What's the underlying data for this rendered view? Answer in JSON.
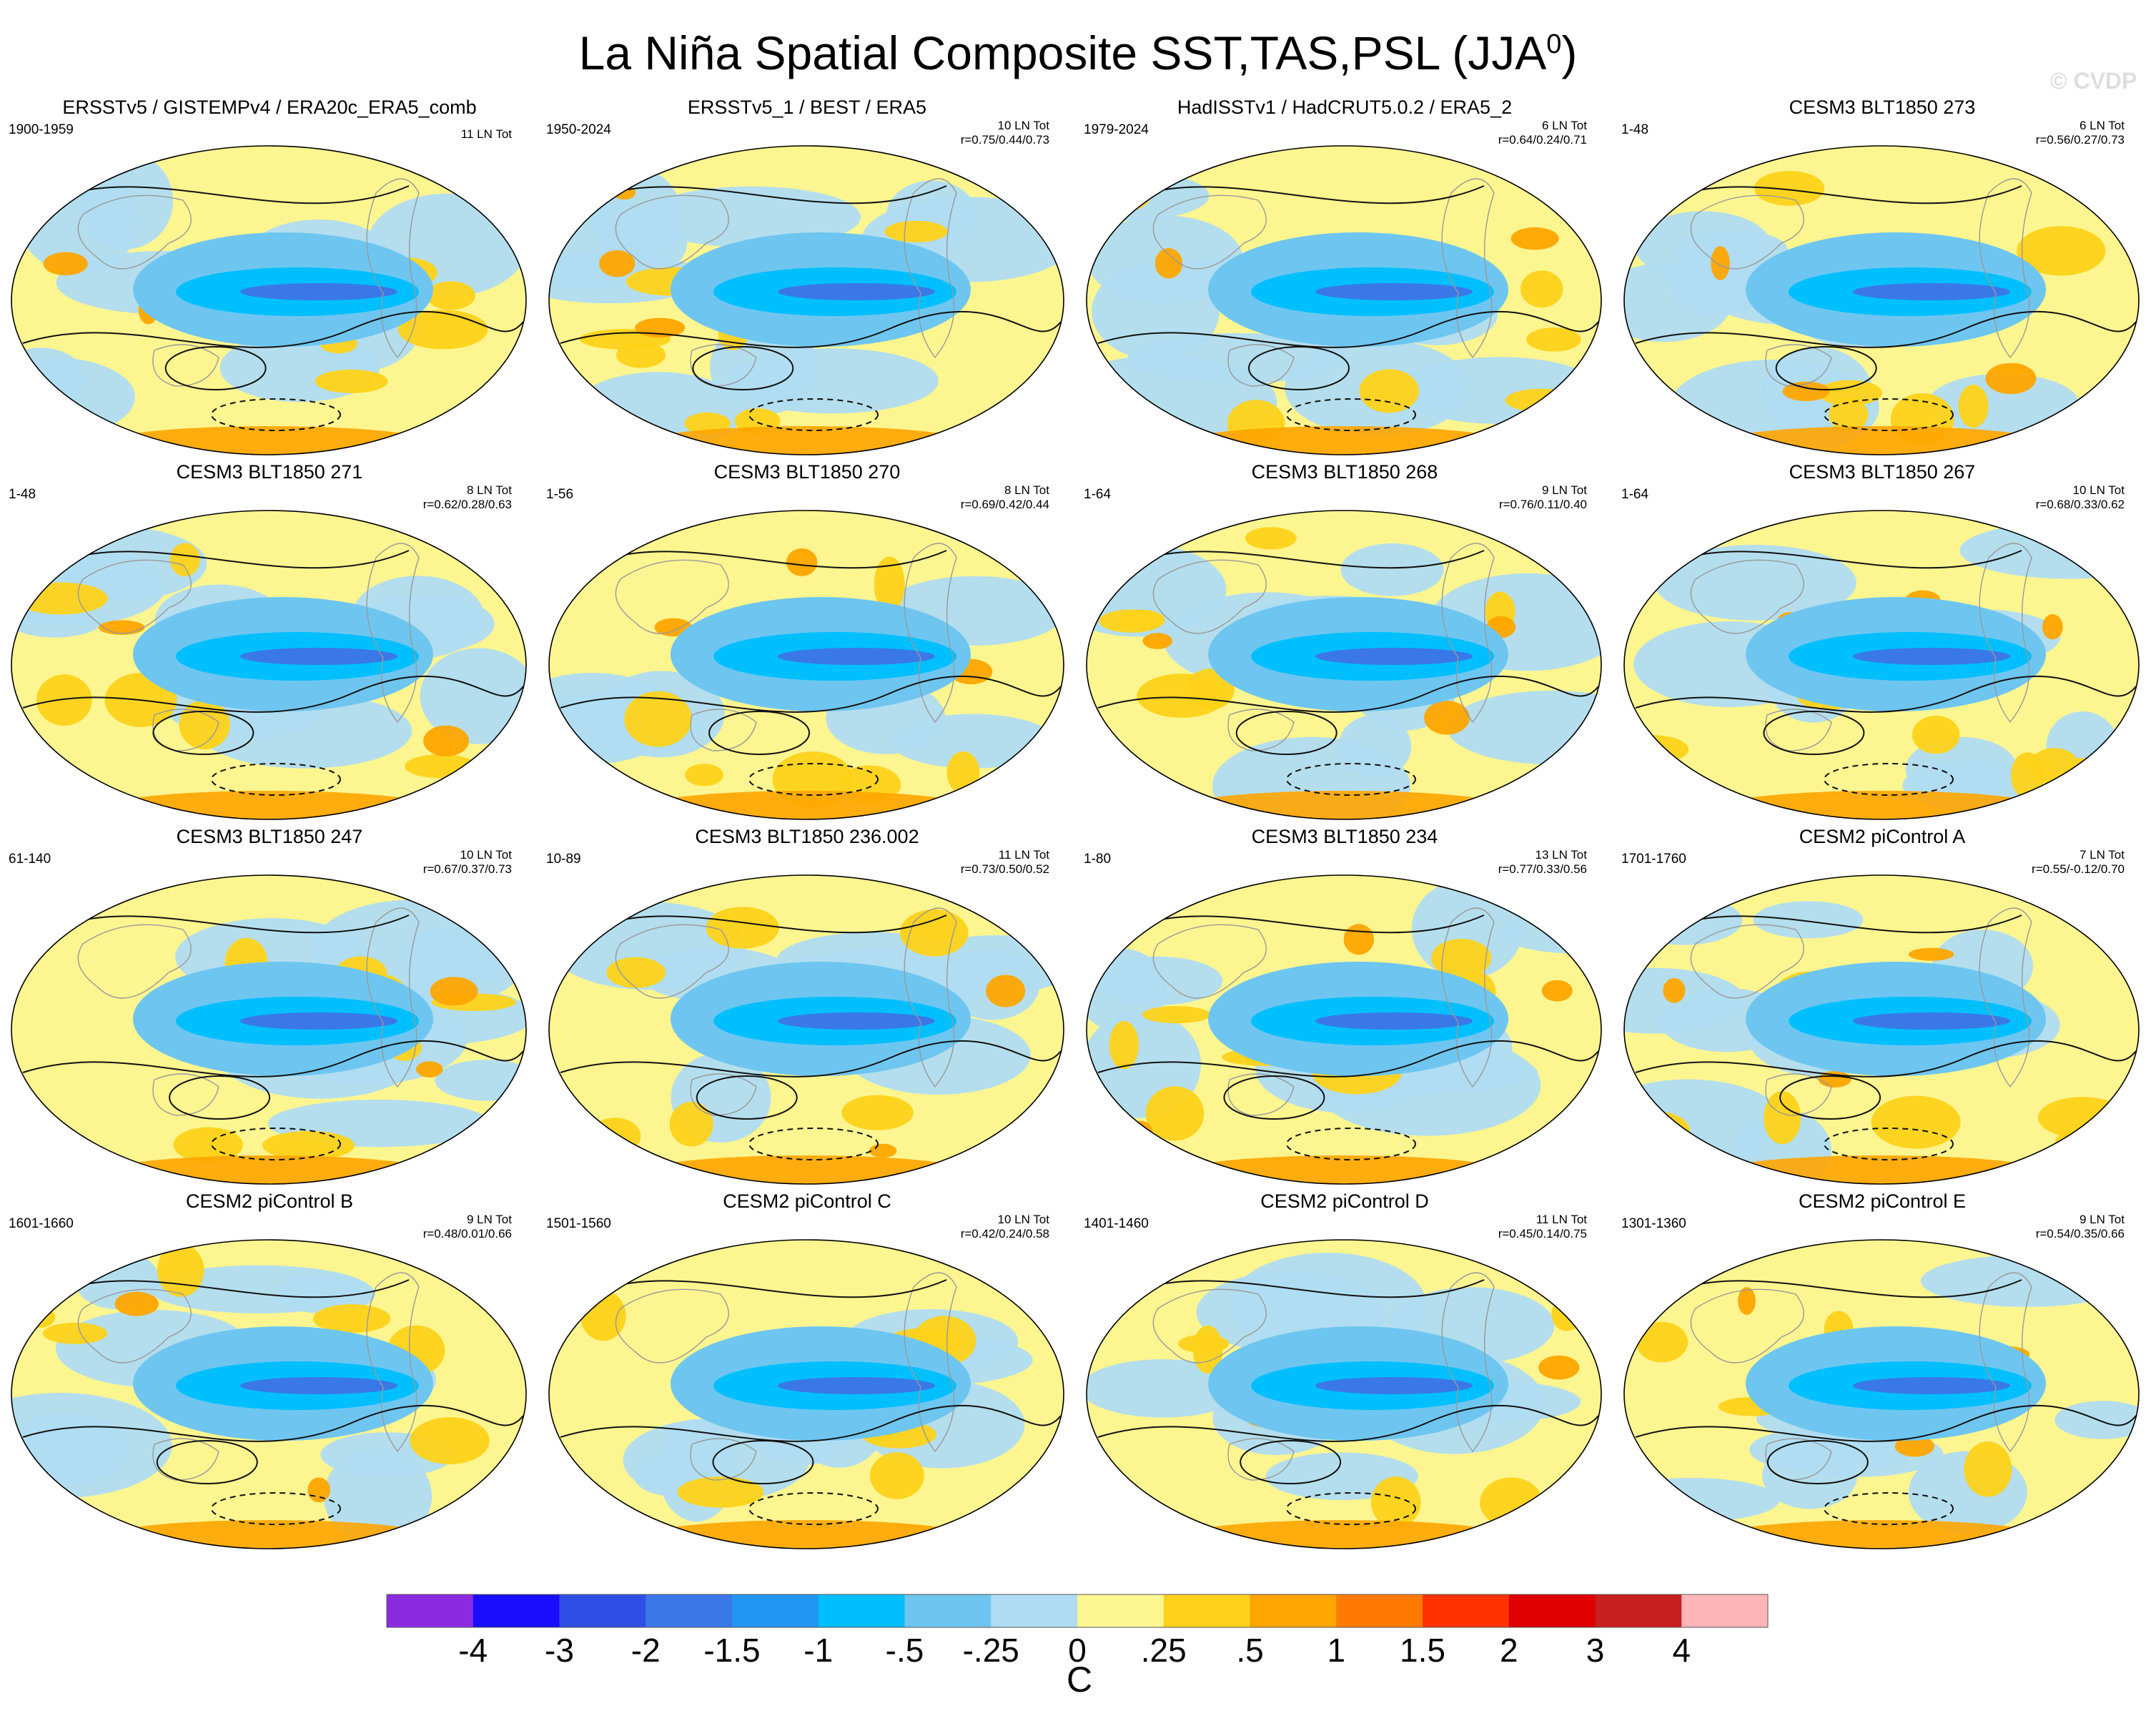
{
  "figure": {
    "title_main": "La Niña Spatial Composite SST,TAS,PSL (JJA",
    "title_sup": "0",
    "title_end": ")",
    "watermark": "© CVDP"
  },
  "chart_data": {
    "type": "heatmap",
    "description_kind": "16 map panels, composite anomalies",
    "panels": [
      {
        "title": "ERSSTv5 / GISTEMPv4 / ERA20c_ERA5_comb",
        "period": "1900-1959",
        "count": "11 LN Tot",
        "r": ""
      },
      {
        "title": "ERSSTv5_1 / BEST / ERA5",
        "period": "1950-2024",
        "count": "10 LN Tot",
        "r": "r=0.75/0.44/0.73"
      },
      {
        "title": "HadISSTv1 / HadCRUT5.0.2 / ERA5_2",
        "period": "1979-2024",
        "count": "6 LN Tot",
        "r": "r=0.64/0.24/0.71"
      },
      {
        "title": "CESM3 BLT1850 273",
        "period": "1-48",
        "count": "6 LN Tot",
        "r": "r=0.56/0.27/0.73"
      },
      {
        "title": "CESM3 BLT1850 271",
        "period": "1-48",
        "count": "8 LN Tot",
        "r": "r=0.62/0.28/0.63"
      },
      {
        "title": "CESM3 BLT1850 270",
        "period": "1-56",
        "count": "8 LN Tot",
        "r": "r=0.69/0.42/0.44"
      },
      {
        "title": "CESM3 BLT1850 268",
        "period": "1-64",
        "count": "9 LN Tot",
        "r": "r=0.76/0.11/0.40"
      },
      {
        "title": "CESM3 BLT1850 267",
        "period": "1-64",
        "count": "10 LN Tot",
        "r": "r=0.68/0.33/0.62"
      },
      {
        "title": "CESM3 BLT1850 247",
        "period": "61-140",
        "count": "10 LN Tot",
        "r": "r=0.67/0.37/0.73"
      },
      {
        "title": "CESM3 BLT1850 236.002",
        "period": "10-89",
        "count": "11 LN Tot",
        "r": "r=0.73/0.50/0.52"
      },
      {
        "title": "CESM3 BLT1850 234",
        "period": "1-80",
        "count": "13 LN Tot",
        "r": "r=0.77/0.33/0.56"
      },
      {
        "title": "CESM2 piControl A",
        "period": "1701-1760",
        "count": "7 LN Tot",
        "r": "r=0.55/-0.12/0.70"
      },
      {
        "title": "CESM2 piControl B",
        "period": "1601-1660",
        "count": "9 LN Tot",
        "r": "r=0.48/0.01/0.66"
      },
      {
        "title": "CESM2 piControl C",
        "period": "1501-1560",
        "count": "10 LN Tot",
        "r": "r=0.42/0.24/0.58"
      },
      {
        "title": "CESM2 piControl D",
        "period": "1401-1460",
        "count": "11 LN Tot",
        "r": "r=0.45/0.14/0.75"
      },
      {
        "title": "CESM2 piControl E",
        "period": "1301-1360",
        "count": "9 LN Tot",
        "r": "r=0.54/0.35/0.66"
      }
    ],
    "colorbar": {
      "labels": [
        "-4",
        "-3",
        "-2",
        "-1.5",
        "-1",
        "-.5",
        "-.25",
        "0",
        ".25",
        ".5",
        "1",
        "1.5",
        "2",
        "3",
        "4"
      ],
      "colors": [
        "#8a2be2",
        "#1a0dff",
        "#2f4ee6",
        "#3a78e8",
        "#2196f3",
        "#00bfff",
        "#6ec6f0",
        "#b0dcf2",
        "#fdf590",
        "#ffd21a",
        "#ffa500",
        "#ff7a00",
        "#ff3300",
        "#e00000",
        "#c81e1e",
        "#ffb6b9"
      ],
      "units": "C"
    }
  }
}
